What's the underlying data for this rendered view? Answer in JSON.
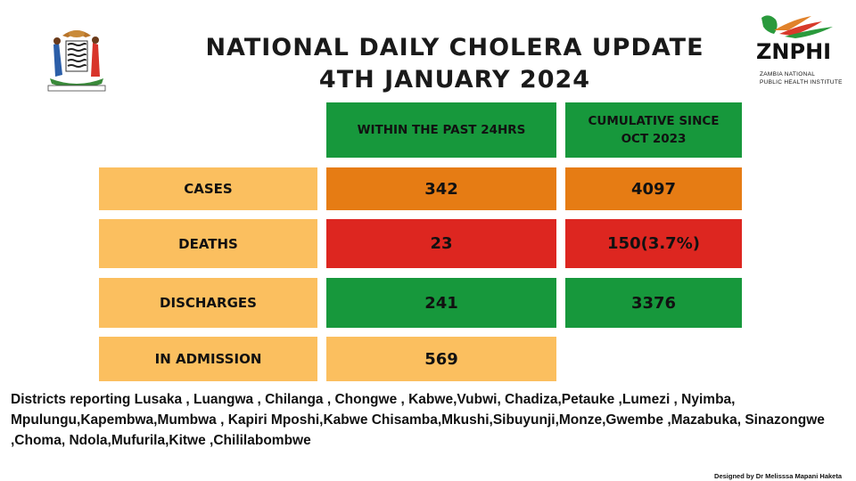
{
  "header": {
    "title_line1": "NATIONAL  DAILY CHOLERA UPDATE",
    "title_line2": "4TH JANUARY 2024"
  },
  "logo": {
    "name": "ZNPHI",
    "sub_line1": "ZAMBIA NATIONAL",
    "sub_line2": "PUBLIC HEALTH INSTITUTE"
  },
  "table": {
    "col_past24": "WITHIN THE PAST 24HRS",
    "col_cumulative": "CUMULATIVE SINCE OCT 2023",
    "rows": [
      {
        "label": "CASES",
        "past24": "342",
        "cumulative": "4097"
      },
      {
        "label": "DEATHS",
        "past24": "23",
        "cumulative": "150(3.7%)"
      },
      {
        "label": "DISCHARGES",
        "past24": "241",
        "cumulative": "3376"
      },
      {
        "label": "IN ADMISSION",
        "past24": "569",
        "cumulative": ""
      }
    ]
  },
  "districts": "Districts reporting Lusaka , Luangwa , Chilanga , Chongwe , Kabwe,Vubwi, Chadiza,Petauke ,Lumezi , Nyimba, Mpulungu,Kapembwa,Mumbwa , Kapiri Mposhi,Kabwe Chisamba,Mkushi,Sibuyunji,Monze,Gwembe ,Mazabuka, Sinazongwe ,Choma, Ndola,Mufurila,Kitwe ,Chililabombwe",
  "credit": "Designed by Dr Melisssa Mapani Haketa",
  "colors": {
    "green": "#17983c",
    "orange": "#e67c14",
    "red": "#dd2620",
    "light_orange": "#fbbf5f"
  }
}
